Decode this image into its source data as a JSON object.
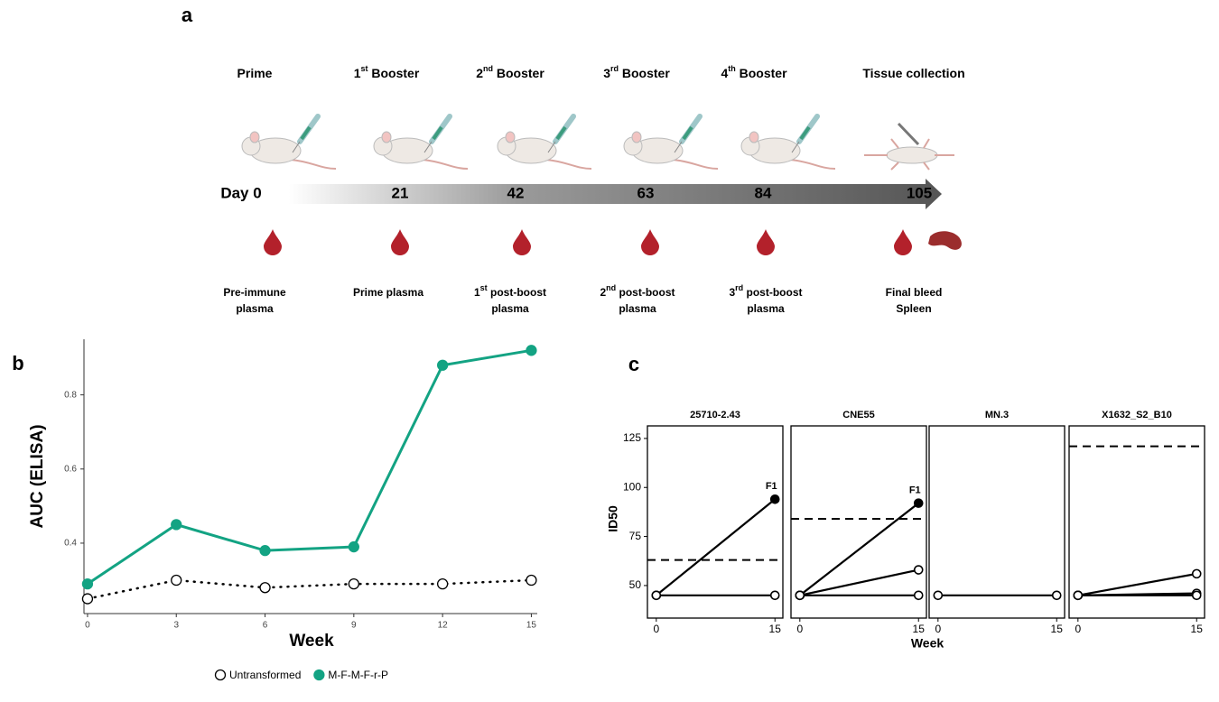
{
  "timeline": {
    "panel_label": "a",
    "stages": [
      {
        "event": [
          "Prime"
        ],
        "day": "Day 0",
        "sample": [
          [
            "Pre-immune"
          ],
          [
            "plasma"
          ]
        ]
      },
      {
        "event": [
          "1",
          {
            "text": "st",
            "sup": true
          },
          " Booster"
        ],
        "day": "21",
        "sample": [
          [
            "Prime plasma"
          ]
        ]
      },
      {
        "event": [
          "2",
          {
            "text": "nd",
            "sup": true
          },
          " Booster"
        ],
        "day": "42",
        "sample": [
          [
            "1",
            {
              "text": "st",
              "sup": true
            },
            " post-boost"
          ],
          [
            "plasma"
          ]
        ]
      },
      {
        "event": [
          "3",
          {
            "text": "rd",
            "sup": true
          },
          " Booster"
        ],
        "day": "63",
        "sample": [
          [
            "2",
            {
              "text": "nd",
              "sup": true
            },
            " post-boost"
          ],
          [
            "plasma"
          ]
        ]
      },
      {
        "event": [
          "4",
          {
            "text": "th",
            "sup": true
          },
          " Booster"
        ],
        "day": "84",
        "sample": [
          [
            "3",
            {
              "text": "rd",
              "sup": true
            },
            " post-boost"
          ],
          [
            "plasma"
          ]
        ]
      },
      {
        "event": [
          "Tissue collection"
        ],
        "day": "105",
        "sample": [
          [
            "Final bleed"
          ],
          [
            "Spleen"
          ]
        ]
      }
    ]
  },
  "chart_data": [
    {
      "type": "line",
      "panel_label": "b",
      "xlabel": "Week",
      "ylabel": "AUC (ELISA)",
      "x": [
        0,
        3,
        6,
        9,
        12,
        15
      ],
      "xlim": [
        -0.12,
        15.2
      ],
      "xticks": [
        0,
        3,
        6,
        9,
        12,
        15
      ],
      "ylim": [
        0.21,
        0.95
      ],
      "yticks": [
        0.4,
        0.6,
        0.8
      ],
      "legend": "bottom",
      "series": [
        {
          "name": "Untransformed",
          "color": "#000000",
          "style": "dotted",
          "filled": false,
          "values": [
            0.25,
            0.3,
            0.28,
            0.29,
            0.29,
            0.3
          ]
        },
        {
          "name": "M-F-M-F-r-P",
          "color": "#13a383",
          "style": "solid",
          "filled": true,
          "values": [
            0.29,
            0.45,
            0.38,
            0.39,
            0.88,
            0.92
          ]
        }
      ]
    },
    {
      "type": "facet-line",
      "panel_label": "c",
      "xlabel": "Week",
      "ylabel": "ID50",
      "x": [
        0,
        15
      ],
      "xlim": [
        -1.12,
        16.0
      ],
      "xticks": [
        0,
        15
      ],
      "ylim": [
        33.4,
        131.4
      ],
      "yticks": [
        50,
        75,
        100,
        125
      ],
      "facets": [
        {
          "title": "25710-2.43",
          "threshold": 63,
          "series": [
            {
              "values": [
                45,
                94
              ],
              "point_label": "F1",
              "filled": true
            },
            {
              "values": [
                45,
                45
              ],
              "filled": false
            }
          ]
        },
        {
          "title": "CNE55",
          "threshold": 84,
          "series": [
            {
              "values": [
                45,
                92
              ],
              "point_label": "F1",
              "filled": true
            },
            {
              "values": [
                45,
                58
              ],
              "filled": false
            },
            {
              "values": [
                45,
                45
              ],
              "filled": false
            }
          ]
        },
        {
          "title": "MN.3",
          "series": [
            {
              "values": [
                45,
                45
              ],
              "filled": false
            }
          ]
        },
        {
          "title": "X1632_S2_B10",
          "threshold": 121,
          "series": [
            {
              "values": [
                45,
                56
              ],
              "filled": false
            },
            {
              "values": [
                45,
                46
              ],
              "filled": false
            },
            {
              "values": [
                45,
                45
              ],
              "filled": false
            }
          ]
        }
      ]
    }
  ]
}
